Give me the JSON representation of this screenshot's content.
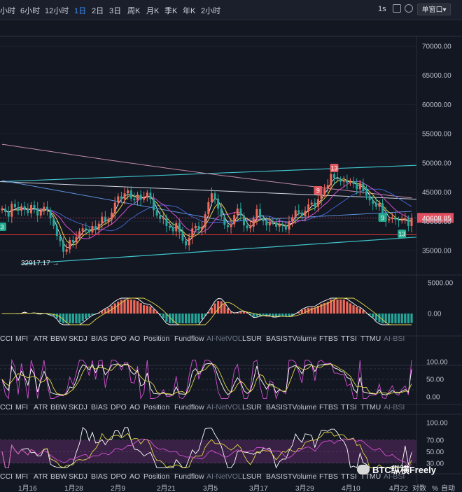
{
  "toolbar": {
    "timeframes": [
      "小时",
      "6小时",
      "12小时",
      "1日",
      "2日",
      "3日",
      "周K",
      "月K",
      "季K",
      "年K",
      "2小时"
    ],
    "active": "1日",
    "seconds": "1s",
    "window_mode": "单窗口▾"
  },
  "colors": {
    "background": "#131722",
    "up": "#ef5350",
    "down": "#26a69a",
    "accent": "#3d8cf0",
    "price_tag": "#e04f5f"
  },
  "chart_data": [
    {
      "type": "candlestick",
      "y_ticks": [
        "70000.00",
        "65000.00",
        "60000.00",
        "55000.00",
        "50000.00",
        "45000.00",
        "40000.00",
        "35000.00"
      ],
      "ylim": [
        33000,
        72000
      ],
      "x_ticks": [
        "1月16",
        "1月28",
        "2月9",
        "2月21",
        "3月5",
        "3月17",
        "3月29",
        "4月10",
        "4月22"
      ],
      "last_price": "40608.85",
      "low_annotation": "32917.17",
      "td_markers": [
        {
          "label": "13",
          "kind": "sell"
        },
        {
          "label": "9",
          "kind": "sell"
        },
        {
          "label": "9",
          "kind": "buy"
        },
        {
          "label": "13",
          "kind": "buy"
        },
        {
          "label": "3",
          "kind": "buy"
        }
      ],
      "horizontal_level": 37700,
      "closes": [
        42200,
        41600,
        40800,
        43000,
        42400,
        41800,
        42600,
        42100,
        41400,
        42800,
        42300,
        41000,
        41800,
        42500,
        41900,
        40500,
        39200,
        37500,
        36600,
        34800,
        35200,
        36800,
        36400,
        37300,
        38300,
        38800,
        38600,
        38100,
        39200,
        38500,
        39600,
        40800,
        39900,
        40300,
        41500,
        43200,
        44300,
        43800,
        44800,
        45300,
        43900,
        43600,
        44600,
        43700,
        44100,
        44900,
        43800,
        41900,
        41000,
        40400,
        40700,
        39200,
        38900,
        38300,
        39700,
        38100,
        36700,
        35900,
        37200,
        38800,
        39200,
        38500,
        39000,
        41200,
        43300,
        44800,
        43900,
        42200,
        40800,
        39400,
        39000,
        39500,
        41100,
        42200,
        41000,
        39300,
        38800,
        39100,
        40500,
        42100,
        40600,
        40000,
        39300,
        39900,
        39800,
        39100,
        39500,
        39300,
        38600,
        40000,
        40700,
        41900,
        41500,
        40900,
        41800,
        42900,
        43200,
        42500,
        43800,
        44700,
        45600,
        46200,
        48100,
        47400,
        47200,
        46800,
        47000,
        46600,
        46900,
        46400,
        45500,
        46600,
        45200,
        44400,
        43600,
        43000,
        42500,
        43100,
        41500,
        40200,
        40400,
        40700,
        40300,
        40100,
        40300,
        40500,
        39200,
        40600
      ],
      "volume_oscillator_ticks": [
        "5000.00",
        "0.00"
      ],
      "oscillator_ticks": [
        "100.00",
        "50.00",
        "0.00"
      ],
      "rsi_ticks": [
        "100.00",
        "70.00",
        "50.00",
        "30.00"
      ],
      "indicators": [
        "CCI",
        "MFI",
        "ATR",
        "BBW",
        "SKDJ",
        "BIAS",
        "DPO",
        "AO",
        "Position",
        "Fundflow",
        "AI-NetVOL",
        "LSUR",
        "BASIS",
        "TVolume",
        "FTBS",
        "TTSI",
        "TTMU",
        "AI-BSI"
      ],
      "bottom_right": [
        "对数",
        "%",
        "自动"
      ]
    }
  ],
  "watermark": "BTC纵横Freely"
}
